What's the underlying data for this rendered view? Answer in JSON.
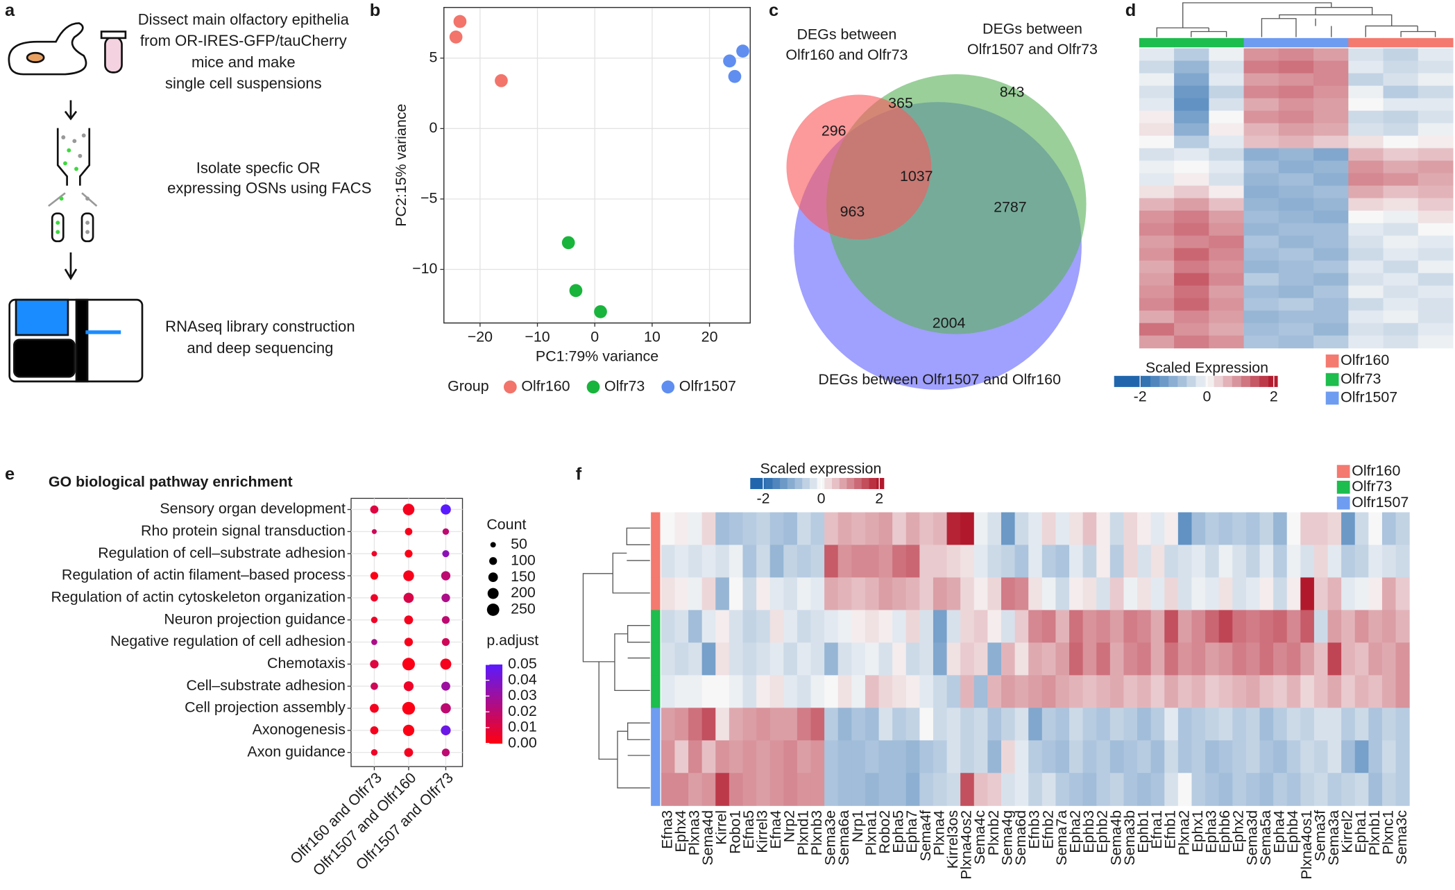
{
  "panel_labels": [
    "a",
    "b",
    "c",
    "d",
    "e",
    "f"
  ],
  "panel_a": {
    "steps": [
      {
        "lines": [
          "Dissect main olfactory epithelia",
          "from OR-IRES-GFP/tauCherry",
          "mice and make",
          "single cell suspensions"
        ]
      },
      {
        "lines": [
          "Isolate specfic OR",
          "expressing OSNs using FACS"
        ]
      },
      {
        "lines": [
          "RNAseq library construction",
          "and deep sequencing"
        ]
      }
    ]
  },
  "chart_data": [
    {
      "type": "scatter",
      "x_label": "PC1:79% variance",
      "y_label": "PC2:15% variance",
      "legend_title": "Group",
      "xlim": [
        -26.3,
        27.1
      ],
      "ylim": [
        -13.8,
        8.6
      ],
      "xticks": [
        {
          "value": -20,
          "label": "−20"
        },
        {
          "value": -10,
          "label": "−10"
        },
        0,
        10,
        20
      ],
      "yticks": [
        5,
        0,
        {
          "value": -5,
          "label": "−5"
        },
        {
          "value": -10,
          "label": "−10"
        }
      ],
      "grid": true,
      "series": [
        {
          "name": "Olfr160",
          "color": "#f2746b",
          "x": [
            -23.5,
            -24.2,
            -16.3
          ],
          "values": [
            7.6,
            6.5,
            3.4
          ]
        },
        {
          "name": "Olfr73",
          "color": "#19b43c",
          "x": [
            -4.6,
            -3.3,
            1.0
          ],
          "values": [
            -8.1,
            -11.5,
            -13.0
          ]
        },
        {
          "name": "Olfr1507",
          "color": "#5f8ef0",
          "x": [
            23.5,
            25.8,
            24.4
          ],
          "values": [
            4.8,
            5.5,
            3.7
          ]
        }
      ]
    },
    {
      "type": "venn",
      "sets": [
        {
          "lines": [
            "DEGs between",
            "Olfr160 and Olfr73"
          ],
          "color": "#f85a5e"
        },
        {
          "lines": [
            "DEGs between",
            "Olfr1507 and Olfr73"
          ],
          "color": "#5cb25c"
        },
        {
          "lines": [
            "DEGs between Olfr1507 and Olfr160"
          ],
          "color": "#6666ff"
        }
      ],
      "regions": [
        296,
        365,
        843,
        1037,
        963,
        2787,
        2004
      ]
    },
    {
      "type": "heatmap",
      "legend_title": "Scaled Expression",
      "colorbar_ticks": [
        -2,
        0,
        2
      ],
      "colors": [
        "#2166ac",
        "#f7f7f7",
        "#b2182b"
      ],
      "column_colors": [
        "#1dbd4e",
        "#1dbd4e",
        "#1dbd4e",
        "#6e9cf0",
        "#6e9cf0",
        "#6e9cf0",
        "#f4796f",
        "#f4796f",
        "#f4796f"
      ],
      "legend": [
        {
          "name": "Olfr160",
          "color": "#f4796f"
        },
        {
          "name": "Olfr73",
          "color": "#1dbd4e"
        },
        {
          "name": "Olfr1507",
          "color": "#6e9cf0"
        }
      ],
      "values": [
        [
          -0.2,
          -0.6,
          -0.1,
          0.9,
          1.0,
          0.8,
          -0.3,
          -0.5,
          -0.2
        ],
        [
          -0.4,
          -0.9,
          -0.3,
          1.1,
          1.2,
          1.0,
          -0.2,
          -0.4,
          -0.3
        ],
        [
          -0.1,
          -1.1,
          -0.2,
          0.8,
          0.9,
          1.0,
          -0.5,
          -0.3,
          -0.1
        ],
        [
          -0.3,
          -1.3,
          -0.5,
          1.0,
          1.1,
          0.9,
          -0.1,
          -0.6,
          -0.4
        ],
        [
          -0.2,
          -1.4,
          -0.3,
          0.7,
          0.9,
          0.8,
          0.0,
          -0.2,
          -0.2
        ],
        [
          0.1,
          -1.2,
          0.0,
          0.9,
          1.0,
          0.8,
          -0.4,
          -0.5,
          -0.3
        ],
        [
          0.2,
          -1.0,
          0.1,
          0.6,
          0.8,
          0.7,
          -0.3,
          -0.4,
          -0.1
        ],
        [
          0.0,
          -0.6,
          -0.2,
          0.5,
          0.6,
          0.4,
          0.2,
          0.0,
          0.1
        ],
        [
          -0.3,
          -0.2,
          -0.4,
          -1.0,
          -0.9,
          -1.1,
          0.6,
          0.4,
          0.5
        ],
        [
          -0.1,
          0.0,
          -0.2,
          -0.8,
          -1.0,
          -0.9,
          0.9,
          0.7,
          0.8
        ],
        [
          -0.2,
          0.1,
          -0.3,
          -0.9,
          -0.8,
          -1.0,
          1.0,
          0.9,
          0.7
        ],
        [
          0.2,
          0.4,
          0.1,
          -1.0,
          -0.9,
          -0.8,
          0.7,
          0.5,
          0.6
        ],
        [
          0.6,
          0.8,
          0.5,
          -0.9,
          -1.0,
          -0.9,
          0.3,
          0.2,
          0.4
        ],
        [
          0.9,
          1.1,
          0.8,
          -0.8,
          -0.9,
          -1.0,
          0.0,
          -0.1,
          0.2
        ],
        [
          1.0,
          1.2,
          0.9,
          -0.9,
          -0.8,
          -0.8,
          -0.2,
          -0.3,
          0.0
        ],
        [
          0.8,
          1.0,
          1.1,
          -0.7,
          -0.9,
          -0.8,
          -0.3,
          -0.1,
          -0.2
        ],
        [
          0.9,
          1.3,
          1.0,
          -0.8,
          -0.7,
          -0.9,
          -0.4,
          -0.2,
          -0.3
        ],
        [
          0.7,
          1.1,
          0.9,
          -0.9,
          -0.8,
          -0.7,
          -0.2,
          -0.4,
          -0.1
        ],
        [
          0.8,
          1.4,
          1.0,
          -0.6,
          -0.8,
          -0.9,
          -0.3,
          -0.2,
          -0.4
        ],
        [
          0.9,
          1.2,
          0.8,
          -0.8,
          -0.9,
          -0.7,
          -0.1,
          -0.3,
          -0.2
        ],
        [
          1.0,
          1.3,
          0.9,
          -0.7,
          -0.6,
          -0.8,
          -0.4,
          -0.2,
          -0.3
        ],
        [
          0.7,
          1.0,
          0.8,
          -0.9,
          -0.8,
          -0.8,
          -0.2,
          -0.1,
          -0.3
        ],
        [
          1.2,
          0.9,
          0.7,
          -0.8,
          -0.7,
          -0.9,
          -0.3,
          -0.4,
          -0.2
        ],
        [
          0.8,
          1.1,
          0.9,
          -0.7,
          -0.8,
          -0.6,
          -0.2,
          -0.3,
          -0.1
        ]
      ]
    },
    {
      "type": "dotplot",
      "title": "GO biological pathway enrichment",
      "categories": [
        "Sensory organ development",
        "Rho protein signal transduction",
        "Regulation of cell–substrate adhesion",
        "Regulation of actin filament–based process",
        "Regulation of actin cytoskeleton organization",
        "Neuron projection guidance",
        "Negative regulation of cell adhesion",
        "Chemotaxis",
        "Cell–substrate adhesion",
        "Cell projection assembly",
        "Axonogenesis",
        "Axon guidance"
      ],
      "x_categories": [
        "Olfr160 and Olfr73",
        "Olfr1507 and Olfr160",
        "Olfr1507 and Olfr73"
      ],
      "counts": [
        [
          110,
          220,
          170
        ],
        [
          40,
          90,
          70
        ],
        [
          50,
          100,
          80
        ],
        [
          100,
          190,
          140
        ],
        [
          90,
          170,
          120
        ],
        [
          70,
          130,
          100
        ],
        [
          60,
          120,
          100
        ],
        [
          120,
          260,
          200
        ],
        [
          90,
          160,
          130
        ],
        [
          130,
          270,
          170
        ],
        [
          110,
          210,
          160
        ],
        [
          70,
          130,
          100
        ]
      ],
      "p_adjust": [
        [
          0.01,
          0.003,
          0.05
        ],
        [
          0.015,
          0.002,
          0.02
        ],
        [
          0.005,
          0.001,
          0.035
        ],
        [
          0.001,
          0.002,
          0.02
        ],
        [
          0.005,
          0.012,
          0.025
        ],
        [
          0.005,
          0.003,
          0.02
        ],
        [
          0.025,
          0.002,
          0.015
        ],
        [
          0.01,
          0.001,
          0.003
        ],
        [
          0.015,
          0.005,
          0.03
        ],
        [
          0.003,
          0.001,
          0.02
        ],
        [
          0.003,
          0.001,
          0.045
        ],
        [
          0.005,
          0.003,
          0.02
        ]
      ],
      "size_legend_title": "Count",
      "size_ticks": [
        50,
        100,
        150,
        200,
        250
      ],
      "color_legend_title": "p.adjust",
      "color_ticks": [
        0.05,
        0.04,
        0.03,
        0.02,
        0.01,
        {
          "value": 0,
          "label": "0.00"
        }
      ],
      "low_color": "#ff0010",
      "high_color": "#5a1aff"
    },
    {
      "type": "heatmap",
      "legend_title": "Scaled expression",
      "colorbar_ticks": [
        -2,
        0,
        2
      ],
      "colors": [
        "#2166ac",
        "#f7f7f7",
        "#b2182b"
      ],
      "row_colors": [
        "#f4796f",
        "#f4796f",
        "#f4796f",
        "#1dbd4e",
        "#1dbd4e",
        "#1dbd4e",
        "#6e9cf0",
        "#6e9cf0",
        "#6e9cf0"
      ],
      "legend": [
        {
          "name": "Olfr160",
          "color": "#f4796f"
        },
        {
          "name": "Olfr73",
          "color": "#1dbd4e"
        },
        {
          "name": "Olfr1507",
          "color": "#6e9cf0"
        }
      ],
      "categories": [
        "Efna3",
        "Ephx4",
        "Plxna3",
        "Sema4d",
        "Kirrel",
        "Robo1",
        "Efna5",
        "Kirrel3",
        "Efna4",
        "Nrp2",
        "Plxnd1",
        "Plxnb3",
        "Sema3e",
        "Sema6a",
        "Nrp1",
        "Plxna1",
        "Robo2",
        "Epha5",
        "Epha7",
        "Sema4f",
        "Plxna4",
        "Kirrel3os",
        "Plxna4os2",
        "Sema4c",
        "Plxnb2",
        "Sema4g",
        "Sema6d",
        "Efnb3",
        "Efnb2",
        "Sema7a",
        "Epha2",
        "Ephb3",
        "Ephb2",
        "Sema4b",
        "Sema3b",
        "Ephb1",
        "Efna1",
        "Efnb1",
        "Plxna2",
        "Ephx1",
        "Epha3",
        "Ephb6",
        "Ephx2",
        "Sema3d",
        "Sema5a",
        "Epha4",
        "Ephb4",
        "Plxna4os1",
        "Sema3f",
        "Sema3a",
        "Kirrel2",
        "Epha1",
        "Plxnb1",
        "Plxnc1",
        "Sema3c"
      ],
      "values": [
        [
          0,
          0.1,
          -0.1,
          0.3,
          -0.8,
          -0.7,
          -0.6,
          -0.5,
          -0.7,
          -0.8,
          -0.4,
          -0.6,
          0.5,
          0.7,
          0.6,
          0.7,
          0.8,
          0.4,
          0.7,
          0.5,
          0.6,
          1.9,
          2.0,
          -0.1,
          -0.3,
          -1.3,
          -0.4,
          -0.2,
          0.3,
          -0.2,
          0.2,
          0.5,
          0.1,
          -0.4,
          0.3,
          0.1,
          -0.2,
          0.1,
          -1.4,
          -0.8,
          -0.6,
          -0.7,
          -0.6,
          -0.7,
          -0.5,
          -0.9,
          0.0,
          0.4,
          0.4,
          0.3,
          -1.3,
          -0.4,
          0.0,
          -0.7,
          -0.5
        ],
        [
          -0.3,
          -0.2,
          -0.3,
          -0.2,
          -0.3,
          -0.1,
          -0.7,
          -0.4,
          -0.9,
          -0.5,
          -0.6,
          -0.5,
          1.4,
          0.9,
          1.0,
          1.0,
          0.9,
          1.2,
          1.3,
          0.4,
          0.4,
          0.3,
          0.2,
          -0.2,
          -0.4,
          -0.5,
          -0.7,
          -0.2,
          -0.6,
          -0.7,
          -0.2,
          -0.5,
          0.1,
          -0.6,
          0.3,
          -0.3,
          0.2,
          -0.4,
          -0.3,
          -0.2,
          -0.4,
          -0.1,
          -0.3,
          -0.5,
          -0.2,
          -0.6,
          -0.1,
          -0.3,
          0.3,
          -0.2,
          -0.6,
          -0.5,
          -0.2,
          -0.3,
          -0.4
        ],
        [
          0.2,
          0.1,
          -0.1,
          0.3,
          -0.9,
          0.0,
          -0.4,
          0.1,
          -0.2,
          -0.3,
          -0.1,
          -0.2,
          0.7,
          0.6,
          0.5,
          0.6,
          0.8,
          0.7,
          0.6,
          0.4,
          0.8,
          0.7,
          0.3,
          0.1,
          0.3,
          1.1,
          1.0,
          0.2,
          -0.1,
          -0.4,
          0.1,
          0.2,
          -0.3,
          0.4,
          -0.1,
          0.2,
          -0.2,
          0.3,
          -0.3,
          -0.1,
          -0.2,
          0.2,
          -0.3,
          -0.2,
          0.1,
          -0.4,
          0.1,
          2.0,
          0.4,
          0.6,
          -0.2,
          -0.1,
          0.1,
          0.7,
          0.4
        ],
        [
          -0.4,
          -0.3,
          -0.8,
          -0.2,
          0.1,
          -0.3,
          -0.5,
          -0.4,
          0.2,
          -0.2,
          -0.4,
          -0.3,
          -0.2,
          -0.1,
          0.1,
          0.2,
          0.1,
          -0.2,
          0.3,
          -0.3,
          -1.2,
          -0.3,
          0.3,
          0.4,
          0.1,
          -0.3,
          0.4,
          1.0,
          1.1,
          0.6,
          1.2,
          0.9,
          1.0,
          0.8,
          1.1,
          1.0,
          0.7,
          1.5,
          0.8,
          1.0,
          1.3,
          1.6,
          1.2,
          1.1,
          1.2,
          1.3,
          1.0,
          1.4,
          -0.4,
          0.8,
          0.6,
          0.9,
          0.7,
          0.8,
          0.6
        ],
        [
          -0.3,
          -0.4,
          -0.3,
          -1.2,
          0.2,
          -0.3,
          -0.4,
          -0.3,
          -0.2,
          -0.4,
          -0.2,
          -0.3,
          -0.9,
          -0.3,
          -0.2,
          -0.1,
          -0.3,
          0.1,
          -0.4,
          -0.3,
          -1.1,
          0.2,
          0.4,
          0.3,
          -1.0,
          0.6,
          0.2,
          0.7,
          0.6,
          0.8,
          1.3,
          0.9,
          1.2,
          0.7,
          1.0,
          1.1,
          0.7,
          1.2,
          0.9,
          1.0,
          0.8,
          0.9,
          1.1,
          1.0,
          1.2,
          1.0,
          1.1,
          0.8,
          0.5,
          1.6,
          0.6,
          0.5,
          0.8,
          0.7,
          0.9
        ],
        [
          -0.2,
          -0.1,
          -0.1,
          0.0,
          0.0,
          -0.1,
          -0.3,
          0.1,
          0.2,
          -0.2,
          -0.3,
          -0.1,
          0.0,
          0.2,
          -0.1,
          0.5,
          0.3,
          0.2,
          0.1,
          -0.2,
          -0.4,
          -0.6,
          0.6,
          -0.8,
          0.6,
          0.8,
          0.7,
          0.8,
          0.9,
          0.7,
          0.6,
          0.5,
          0.6,
          0.7,
          0.5,
          0.6,
          0.4,
          0.7,
          0.5,
          0.6,
          0.4,
          0.5,
          0.6,
          0.7,
          0.5,
          0.4,
          0.6,
          0.3,
          0.5,
          0.7,
          0.4,
          0.6,
          0.5,
          0.7,
          0.9
        ],
        [
          0.8,
          0.9,
          1.2,
          1.5,
          0.2,
          0.7,
          0.8,
          0.9,
          0.8,
          0.8,
          1.1,
          1.3,
          -0.6,
          -0.9,
          -0.7,
          -0.8,
          -0.3,
          -0.6,
          -0.5,
          0.0,
          -0.4,
          -0.3,
          -0.5,
          -0.4,
          -0.7,
          -0.5,
          -0.3,
          -1.1,
          -0.6,
          -0.7,
          -0.4,
          -0.6,
          -0.7,
          -0.5,
          -0.6,
          -0.8,
          -0.6,
          -0.2,
          -0.7,
          -0.6,
          -0.5,
          -0.4,
          -0.6,
          -0.5,
          -0.8,
          -0.6,
          -0.4,
          -0.5,
          -0.3,
          -0.3,
          -0.6,
          -0.4,
          -0.7,
          -0.5,
          -0.6
        ],
        [
          0.9,
          0.4,
          1.0,
          0.5,
          0.9,
          0.8,
          0.9,
          0.8,
          0.9,
          1.0,
          0.8,
          0.9,
          -0.7,
          -0.8,
          -0.8,
          -0.7,
          -0.8,
          -0.8,
          -0.9,
          -0.7,
          -0.6,
          -0.3,
          -0.5,
          -0.4,
          -0.9,
          0.3,
          -0.2,
          -0.6,
          -0.7,
          -0.8,
          -0.5,
          -0.7,
          -0.6,
          -0.8,
          -0.7,
          -0.6,
          -0.8,
          -0.4,
          -0.7,
          -0.6,
          -0.8,
          -0.7,
          -0.6,
          -0.5,
          -0.7,
          -0.8,
          -0.6,
          -0.4,
          -0.5,
          -0.3,
          -0.8,
          -1.2,
          -0.7,
          -0.4,
          -0.6
        ],
        [
          1.0,
          1.0,
          0.8,
          0.9,
          1.7,
          1.0,
          0.9,
          0.8,
          0.9,
          1.0,
          0.9,
          0.9,
          -0.7,
          -0.8,
          -0.8,
          -0.9,
          -0.8,
          -0.8,
          -1.0,
          -0.6,
          -0.5,
          -0.4,
          1.5,
          0.5,
          0.4,
          -0.3,
          -0.2,
          -0.5,
          -0.3,
          -0.6,
          -0.7,
          -0.8,
          -0.6,
          -0.5,
          -0.7,
          -0.8,
          -0.7,
          -0.3,
          0.0,
          -0.6,
          -0.7,
          -0.8,
          -0.6,
          -0.7,
          -0.8,
          -0.6,
          -0.7,
          -0.5,
          -0.4,
          -0.6,
          -0.5,
          -0.4,
          -0.8,
          -0.5,
          -0.6
        ]
      ]
    }
  ]
}
